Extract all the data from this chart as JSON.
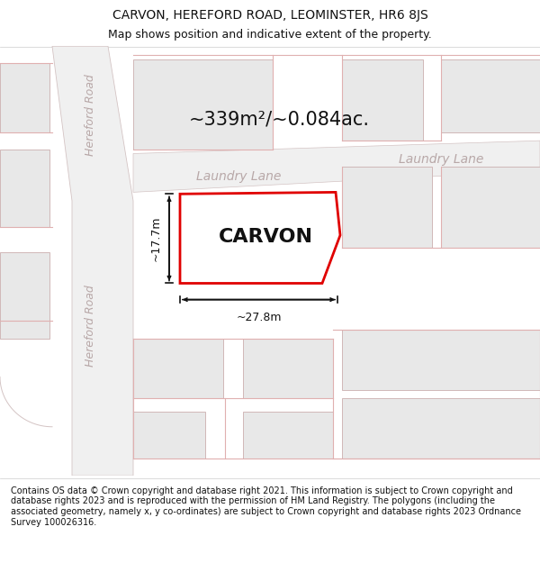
{
  "title": "CARVON, HEREFORD ROAD, LEOMINSTER, HR6 8JS",
  "subtitle": "Map shows position and indicative extent of the property.",
  "footer": "Contains OS data © Crown copyright and database right 2021. This information is subject to Crown copyright and database rights 2023 and is reproduced with the permission of HM Land Registry. The polygons (including the associated geometry, namely x, y co-ordinates) are subject to Crown copyright and database rights 2023 Ordnance Survey 100026316.",
  "area_label": "~339m²/~0.084ac.",
  "width_label": "~27.8m",
  "height_label": "~17.7m",
  "property_label": "CARVON",
  "laundry_lane_label": "Laundry Lane",
  "laundry_lane_label2": "Laundry Lane",
  "hereford_road_label": "Hereford Road",
  "hereford_road_label2": "Hereford Road",
  "bg_color": "#ffffff",
  "map_bg": "#ffffff",
  "block_fill": "#e8e8e8",
  "block_edge": "#d0b8b8",
  "road_fill": "#f0f0f0",
  "road_edge": "#cccccc",
  "property_fill": "#ffffff",
  "property_edge": "#e00000",
  "dim_color": "#111111",
  "road_label_color": "#b8a8a8",
  "hereford_color": "#b8a8a8",
  "title_fontsize": 10,
  "subtitle_fontsize": 9,
  "footer_fontsize": 7,
  "area_fontsize": 15,
  "property_fontsize": 16,
  "road_label_fontsize": 10,
  "hereford_fontsize": 9,
  "dim_fontsize": 9
}
